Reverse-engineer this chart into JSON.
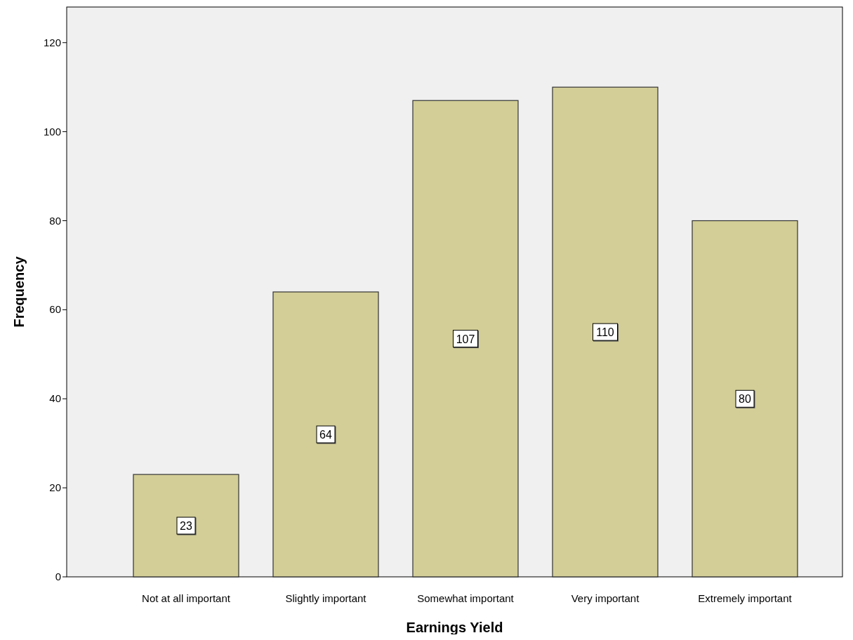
{
  "chart_data": {
    "type": "bar",
    "xlabel": "Earnings Yield",
    "ylabel": "Frequency",
    "categories": [
      "Not at all important",
      "Slightly important",
      "Somewhat important",
      "Very important",
      "Extremely important"
    ],
    "values": [
      23,
      64,
      107,
      110,
      80
    ],
    "color": "#d3ce97",
    "ylim": [
      0,
      128
    ],
    "yticks": [
      0,
      20,
      40,
      60,
      80,
      100,
      120
    ],
    "data_labels": true
  }
}
